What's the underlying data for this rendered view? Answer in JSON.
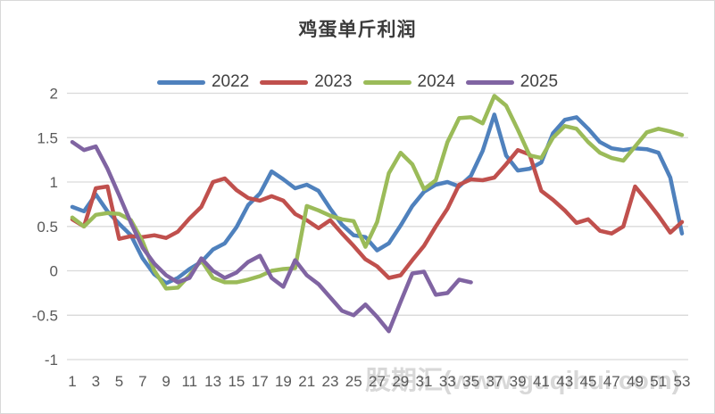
{
  "title": "鸡蛋单斤利润",
  "watermark": "股期汇(www.guqihui.com)",
  "colors": {
    "series_2022": "#4F81BD",
    "series_2023": "#C0504D",
    "series_2024": "#9BBB59",
    "series_2025": "#8064A2",
    "gridline": "#d9d9d9",
    "tick_label": "#595959",
    "title_text": "#3b3b3b"
  },
  "chart_data": {
    "type": "line",
    "title": "鸡蛋单斤利润",
    "xlabel": "",
    "ylabel": "",
    "x_weeks": 53,
    "x_tick_labels": [
      "1",
      "3",
      "5",
      "7",
      "9",
      "11",
      "13",
      "15",
      "17",
      "19",
      "21",
      "23",
      "25",
      "27",
      "29",
      "31",
      "33",
      "35",
      "37",
      "39",
      "41",
      "43",
      "45",
      "47",
      "49",
      "51",
      "53"
    ],
    "ylim": [
      -1,
      2
    ],
    "y_tick_step": 0.5,
    "y_tick_labels": [
      "2",
      "1.5",
      "1",
      "0.5",
      "0",
      "-0.5",
      "-1"
    ],
    "grid": true,
    "legend_position": "top",
    "series": [
      {
        "name": "2022",
        "color": "#4F81BD",
        "values": [
          0.72,
          0.67,
          0.86,
          0.67,
          0.53,
          0.4,
          0.14,
          -0.04,
          -0.14,
          -0.08,
          0.02,
          0.1,
          0.24,
          0.31,
          0.49,
          0.74,
          0.87,
          1.12,
          1.03,
          0.93,
          0.97,
          0.9,
          0.7,
          0.52,
          0.4,
          0.38,
          0.23,
          0.31,
          0.51,
          0.73,
          0.89,
          0.97,
          1.0,
          0.95,
          1.07,
          1.35,
          1.76,
          1.3,
          1.13,
          1.15,
          1.22,
          1.55,
          1.7,
          1.73,
          1.6,
          1.45,
          1.38,
          1.36,
          1.38,
          1.37,
          1.33,
          1.05,
          0.42
        ]
      },
      {
        "name": "2023",
        "color": "#C0504D",
        "values": [
          0.58,
          0.5,
          0.93,
          0.95,
          0.36,
          0.39,
          0.38,
          0.4,
          0.37,
          0.44,
          0.59,
          0.72,
          1.0,
          1.04,
          0.91,
          0.82,
          0.79,
          0.84,
          0.79,
          0.64,
          0.57,
          0.48,
          0.57,
          0.42,
          0.28,
          0.13,
          0.05,
          -0.08,
          -0.05,
          0.12,
          0.28,
          0.5,
          0.7,
          0.97,
          1.03,
          1.02,
          1.05,
          1.2,
          1.36,
          1.31,
          0.9,
          0.8,
          0.68,
          0.54,
          0.58,
          0.45,
          0.42,
          0.5,
          0.95,
          0.79,
          0.62,
          0.43,
          0.55
        ]
      },
      {
        "name": "2024",
        "color": "#9BBB59",
        "values": [
          0.6,
          0.5,
          0.63,
          0.65,
          0.64,
          0.57,
          0.33,
          0.0,
          -0.2,
          -0.19,
          -0.05,
          0.12,
          -0.08,
          -0.13,
          -0.13,
          -0.1,
          -0.06,
          0.0,
          0.02,
          0.03,
          0.73,
          0.68,
          0.62,
          0.58,
          0.56,
          0.27,
          0.55,
          1.1,
          1.33,
          1.2,
          0.92,
          1.02,
          1.45,
          1.72,
          1.73,
          1.66,
          1.97,
          1.86,
          1.59,
          1.3,
          1.27,
          1.5,
          1.63,
          1.6,
          1.45,
          1.33,
          1.27,
          1.24,
          1.4,
          1.56,
          1.6,
          1.57,
          1.53
        ]
      },
      {
        "name": "2025",
        "color": "#8064A2",
        "values": [
          1.45,
          1.36,
          1.4,
          1.15,
          0.85,
          0.54,
          0.26,
          0.08,
          -0.05,
          -0.13,
          -0.08,
          0.14,
          0.0,
          -0.08,
          -0.02,
          0.1,
          0.17,
          -0.08,
          -0.18,
          0.12,
          -0.05,
          -0.15,
          -0.3,
          -0.45,
          -0.5,
          -0.38,
          -0.52,
          -0.68,
          -0.35,
          -0.03,
          -0.01,
          -0.27,
          -0.25,
          -0.1,
          -0.13
        ]
      }
    ]
  }
}
